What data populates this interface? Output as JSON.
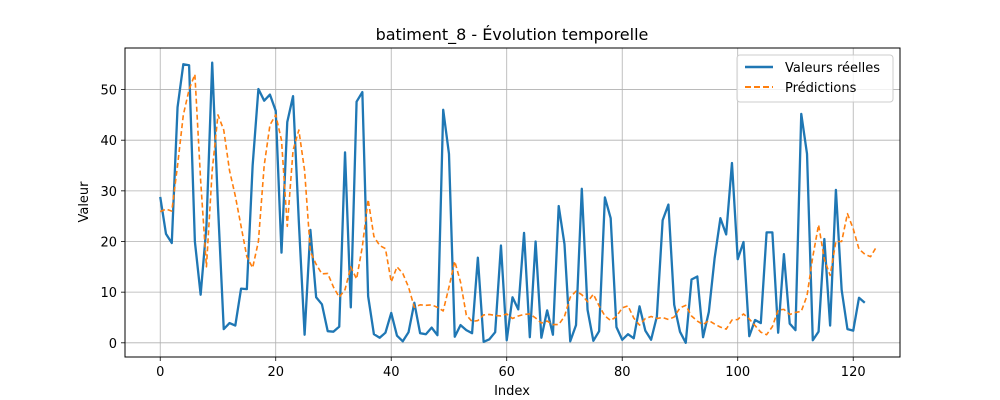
{
  "chart_data": {
    "type": "line",
    "title": "batiment_8 - Évolution temporelle",
    "xlabel": "Index",
    "ylabel": "Valeur",
    "xlim": [
      -6.1,
      128.1
    ],
    "ylim": [
      -2.8,
      58.2
    ],
    "xticks": [
      0,
      20,
      40,
      60,
      80,
      100,
      120
    ],
    "yticks": [
      0,
      10,
      20,
      30,
      40,
      50
    ],
    "grid": true,
    "legend_position": "top-right",
    "series": [
      {
        "name": "Valeurs réelles",
        "color": "#1f77b4",
        "style": "solid",
        "values": [
          28.8,
          21.5,
          19.7,
          46.5,
          55.0,
          54.8,
          20.0,
          9.5,
          23.0,
          55.3,
          27.0,
          2.7,
          3.9,
          3.4,
          10.7,
          10.6,
          35.0,
          50.1,
          47.8,
          49.0,
          45.8,
          17.8,
          43.6,
          48.7,
          23.9,
          1.6,
          22.3,
          9.0,
          7.6,
          2.3,
          2.2,
          3.2,
          37.6,
          7.0,
          47.6,
          49.5,
          9.2,
          1.7,
          1.0,
          2.0,
          5.9,
          1.4,
          0.3,
          2.1,
          7.9,
          1.9,
          1.7,
          3.0,
          1.5,
          46.0,
          37.3,
          1.2,
          3.5,
          2.5,
          1.9,
          16.8,
          0.2,
          0.7,
          2.1,
          19.2,
          0.5,
          9.0,
          6.6,
          21.7,
          1.1,
          20.0,
          1.0,
          6.4,
          1.6,
          27.0,
          19.5,
          0.3,
          3.5,
          30.4,
          6.5,
          0.4,
          2.3,
          28.7,
          24.6,
          3.1,
          0.6,
          1.7,
          0.9,
          7.2,
          2.4,
          0.6,
          5.2,
          24.2,
          27.3,
          7.5,
          2.2,
          0.0,
          12.5,
          13.1,
          1.1,
          6.1,
          16.7,
          24.6,
          21.4,
          35.5,
          16.5,
          19.9,
          1.3,
          4.5,
          3.9,
          21.8,
          21.8,
          2.0,
          17.5,
          3.8,
          2.5,
          45.2,
          37.3,
          0.5,
          2.2,
          20.5,
          3.4,
          30.2,
          10.4,
          2.7,
          2.4,
          8.9,
          7.9
        ]
      },
      {
        "name": "Prédictions",
        "color": "#ff7f0e",
        "style": "dashed",
        "values": [
          25.9,
          26.4,
          26.0,
          35.0,
          45.0,
          50.0,
          53.0,
          32.0,
          15.0,
          34.0,
          45.0,
          42.0,
          34.0,
          29.0,
          23.0,
          17.0,
          14.8,
          20.0,
          35.0,
          43.0,
          45.0,
          40.0,
          23.0,
          38.0,
          42.0,
          34.0,
          18.0,
          15.5,
          13.6,
          13.7,
          11.0,
          9.0,
          10.5,
          15.0,
          12.6,
          19.0,
          28.3,
          21.0,
          19.2,
          18.6,
          12.0,
          15.0,
          13.7,
          11.0,
          7.0,
          7.5,
          7.4,
          7.5,
          7.0,
          6.3,
          11.0,
          16.1,
          12.0,
          5.5,
          4.2,
          4.4,
          5.5,
          5.6,
          5.4,
          5.3,
          5.7,
          4.8,
          5.3,
          5.6,
          5.7,
          4.9,
          3.9,
          4.3,
          3.6,
          3.6,
          5.2,
          9.0,
          10.2,
          9.5,
          8.1,
          9.6,
          7.3,
          5.3,
          4.4,
          5.2,
          6.9,
          7.3,
          4.9,
          3.5,
          4.8,
          5.2,
          4.8,
          5.0,
          4.6,
          5.1,
          6.9,
          7.4,
          5.3,
          4.3,
          3.6,
          4.4,
          3.7,
          3.1,
          2.7,
          4.5,
          4.6,
          5.7,
          4.7,
          3.4,
          2.1,
          1.6,
          3.2,
          6.5,
          6.6,
          5.6,
          6.0,
          6.2,
          9.3,
          17.0,
          23.3,
          16.5,
          13.3,
          20.0,
          20.0,
          25.5,
          22.5,
          18.5,
          17.5,
          17.0,
          18.9
        ]
      }
    ]
  }
}
